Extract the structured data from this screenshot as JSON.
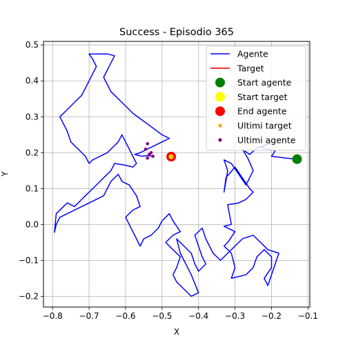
{
  "chart_data": {
    "type": "line",
    "title": "Success - Episodio 365",
    "xlabel": "X",
    "ylabel": "Y",
    "xlim": [
      -0.825,
      -0.095
    ],
    "ylim": [
      -0.23,
      0.51
    ],
    "xticks": [
      -0.8,
      -0.7,
      -0.6,
      -0.5,
      -0.4,
      -0.3,
      -0.2,
      -0.1
    ],
    "yticks": [
      -0.2,
      -0.1,
      0.0,
      0.1,
      0.2,
      0.3,
      0.4,
      0.5
    ],
    "xtick_labels": [
      "−0.8",
      "−0.7",
      "−0.6",
      "−0.5",
      "−0.4",
      "−0.3",
      "−0.2",
      "−0.1"
    ],
    "ytick_labels": [
      "−0.2",
      "−0.1",
      "0.0",
      "0.1",
      "0.2",
      "0.3",
      "0.4",
      "0.5"
    ],
    "grid": true,
    "legend_position": "top-right",
    "legend": [
      {
        "label": "Agente",
        "marker": "line",
        "color": "#0000ff"
      },
      {
        "label": "Target",
        "marker": "line",
        "color": "#ff0000"
      },
      {
        "label": "Start agente",
        "marker": "circle",
        "color": "#008000"
      },
      {
        "label": "Start target",
        "marker": "circle",
        "color": "#ffff00"
      },
      {
        "label": "End agente",
        "marker": "circle",
        "color": "#ff0000"
      },
      {
        "label": "Ultimi target",
        "marker": "dot",
        "color": "#ffa500"
      },
      {
        "label": "Ultimi agente",
        "marker": "dot",
        "color": "#800080"
      }
    ],
    "series": [
      {
        "name": "Agente",
        "color": "#0000ff",
        "points": [
          [
            -0.13,
            0.182
          ],
          [
            -0.16,
            0.185
          ],
          [
            -0.2,
            0.19
          ],
          [
            -0.19,
            0.205
          ],
          [
            -0.23,
            0.215
          ],
          [
            -0.2,
            0.228
          ],
          [
            -0.24,
            0.213
          ],
          [
            -0.26,
            0.195
          ],
          [
            -0.28,
            0.21
          ],
          [
            -0.265,
            0.185
          ],
          [
            -0.25,
            0.15
          ],
          [
            -0.27,
            0.11
          ],
          [
            -0.29,
            0.14
          ],
          [
            -0.31,
            0.17
          ],
          [
            -0.33,
            0.18
          ],
          [
            -0.32,
            0.15
          ],
          [
            -0.33,
            0.09
          ],
          [
            -0.325,
            0.13
          ],
          [
            -0.3,
            0.16
          ],
          [
            -0.28,
            0.13
          ],
          [
            -0.26,
            0.1
          ],
          [
            -0.25,
            0.09
          ],
          [
            -0.27,
            0.07
          ],
          [
            -0.29,
            0.06
          ],
          [
            -0.32,
            0.055
          ],
          [
            -0.31,
            0.0
          ],
          [
            -0.33,
            -0.005
          ],
          [
            -0.3,
            -0.02
          ],
          [
            -0.32,
            -0.05
          ],
          [
            -0.33,
            -0.06
          ],
          [
            -0.31,
            -0.08
          ],
          [
            -0.3,
            -0.12
          ],
          [
            -0.31,
            -0.15
          ],
          [
            -0.27,
            -0.14
          ],
          [
            -0.25,
            -0.12
          ],
          [
            -0.24,
            -0.09
          ],
          [
            -0.22,
            -0.07
          ],
          [
            -0.2,
            -0.09
          ],
          [
            -0.2,
            -0.12
          ],
          [
            -0.22,
            -0.15
          ],
          [
            -0.21,
            -0.17
          ],
          [
            -0.2,
            -0.14
          ],
          [
            -0.19,
            -0.11
          ],
          [
            -0.18,
            -0.08
          ],
          [
            -0.21,
            -0.07
          ],
          [
            -0.23,
            -0.05
          ],
          [
            -0.25,
            -0.03
          ],
          [
            -0.28,
            -0.04
          ],
          [
            -0.3,
            -0.06
          ],
          [
            -0.32,
            -0.08
          ],
          [
            -0.34,
            -0.1
          ],
          [
            -0.36,
            -0.08
          ],
          [
            -0.37,
            -0.06
          ],
          [
            -0.38,
            -0.04
          ],
          [
            -0.39,
            -0.01
          ],
          [
            -0.41,
            -0.03
          ],
          [
            -0.4,
            -0.06
          ],
          [
            -0.39,
            -0.09
          ],
          [
            -0.38,
            -0.11
          ],
          [
            -0.4,
            -0.13
          ],
          [
            -0.41,
            -0.11
          ],
          [
            -0.42,
            -0.08
          ],
          [
            -0.44,
            -0.06
          ],
          [
            -0.46,
            -0.04
          ],
          [
            -0.45,
            -0.08
          ],
          [
            -0.44,
            -0.1
          ],
          [
            -0.42,
            -0.14
          ],
          [
            -0.4,
            -0.19
          ],
          [
            -0.42,
            -0.2
          ],
          [
            -0.44,
            -0.18
          ],
          [
            -0.46,
            -0.16
          ],
          [
            -0.47,
            -0.14
          ],
          [
            -0.46,
            -0.12
          ],
          [
            -0.45,
            -0.09
          ],
          [
            -0.47,
            -0.07
          ],
          [
            -0.49,
            -0.05
          ],
          [
            -0.47,
            -0.03
          ],
          [
            -0.45,
            -0.02
          ],
          [
            -0.47,
            0.01
          ],
          [
            -0.48,
            0.03
          ],
          [
            -0.5,
            0.01
          ],
          [
            -0.51,
            -0.01
          ],
          [
            -0.53,
            -0.03
          ],
          [
            -0.55,
            -0.04
          ],
          [
            -0.56,
            -0.06
          ],
          [
            -0.57,
            -0.04
          ],
          [
            -0.58,
            -0.02
          ],
          [
            -0.59,
            0.0
          ],
          [
            -0.6,
            0.02
          ],
          [
            -0.58,
            0.04
          ],
          [
            -0.56,
            0.05
          ],
          [
            -0.57,
            0.08
          ],
          [
            -0.59,
            0.11
          ],
          [
            -0.61,
            0.12
          ],
          [
            -0.62,
            0.14
          ],
          [
            -0.64,
            0.12
          ],
          [
            -0.65,
            0.1
          ],
          [
            -0.66,
            0.08
          ],
          [
            -0.68,
            0.07
          ],
          [
            -0.7,
            0.06
          ],
          [
            -0.72,
            0.05
          ],
          [
            -0.74,
            0.04
          ],
          [
            -0.76,
            0.03
          ],
          [
            -0.78,
            0.02
          ],
          [
            -0.79,
            0.0
          ],
          [
            -0.795,
            -0.022
          ],
          [
            -0.79,
            0.03
          ],
          [
            -0.77,
            0.05
          ],
          [
            -0.76,
            0.06
          ],
          [
            -0.74,
            0.05
          ],
          [
            -0.72,
            0.07
          ],
          [
            -0.7,
            0.09
          ],
          [
            -0.68,
            0.11
          ],
          [
            -0.66,
            0.13
          ],
          [
            -0.64,
            0.15
          ],
          [
            -0.63,
            0.17
          ],
          [
            -0.6,
            0.165
          ],
          [
            -0.58,
            0.16
          ],
          [
            -0.57,
            0.17
          ],
          [
            -0.58,
            0.19
          ],
          [
            -0.59,
            0.21
          ],
          [
            -0.6,
            0.23
          ],
          [
            -0.61,
            0.25
          ],
          [
            -0.62,
            0.23
          ],
          [
            -0.63,
            0.22
          ],
          [
            -0.65,
            0.2
          ],
          [
            -0.67,
            0.19
          ],
          [
            -0.69,
            0.18
          ],
          [
            -0.7,
            0.17
          ],
          [
            -0.71,
            0.19
          ],
          [
            -0.73,
            0.21
          ],
          [
            -0.75,
            0.23
          ],
          [
            -0.76,
            0.26
          ],
          [
            -0.77,
            0.28
          ],
          [
            -0.78,
            0.3
          ],
          [
            -0.76,
            0.32
          ],
          [
            -0.74,
            0.34
          ],
          [
            -0.72,
            0.36
          ],
          [
            -0.71,
            0.38
          ],
          [
            -0.7,
            0.4
          ],
          [
            -0.69,
            0.42
          ],
          [
            -0.68,
            0.44
          ],
          [
            -0.69,
            0.46
          ],
          [
            -0.7,
            0.475
          ],
          [
            -0.65,
            0.475
          ],
          [
            -0.63,
            0.47
          ],
          [
            -0.64,
            0.45
          ],
          [
            -0.65,
            0.43
          ],
          [
            -0.66,
            0.41
          ],
          [
            -0.65,
            0.39
          ],
          [
            -0.64,
            0.37
          ],
          [
            -0.62,
            0.35
          ],
          [
            -0.6,
            0.33
          ],
          [
            -0.58,
            0.31
          ],
          [
            -0.56,
            0.295
          ],
          [
            -0.54,
            0.28
          ],
          [
            -0.52,
            0.265
          ],
          [
            -0.5,
            0.25
          ],
          [
            -0.48,
            0.24
          ],
          [
            -0.5,
            0.23
          ],
          [
            -0.52,
            0.22
          ],
          [
            -0.54,
            0.21
          ],
          [
            -0.56,
            0.2
          ],
          [
            -0.575,
            0.195
          ],
          [
            -0.555,
            0.19
          ],
          [
            -0.54,
            0.192
          ],
          [
            -0.525,
            0.19
          ]
        ]
      },
      {
        "name": "Target",
        "color": "#ff0000",
        "points": [
          [
            -0.475,
            0.189
          ],
          [
            -0.472,
            0.19
          ]
        ]
      }
    ],
    "markers": {
      "start_agente": {
        "x": -0.13,
        "y": 0.182,
        "color": "#008000"
      },
      "start_target": {
        "x": -0.475,
        "y": 0.189,
        "color": "#ffff00"
      },
      "end_agente": {
        "x": -0.475,
        "y": 0.189,
        "color": "#ff0000"
      },
      "ultimi_target": [
        [
          -0.472,
          0.19
        ]
      ],
      "ultimi_agente": [
        [
          -0.54,
          0.225
        ],
        [
          -0.545,
          0.21
        ],
        [
          -0.535,
          0.195
        ],
        [
          -0.54,
          0.185
        ],
        [
          -0.525,
          0.19
        ],
        [
          -0.53,
          0.2
        ]
      ]
    },
    "ultimi_target_color": "#ffa500",
    "ultimi_agente_color": "#800080"
  }
}
